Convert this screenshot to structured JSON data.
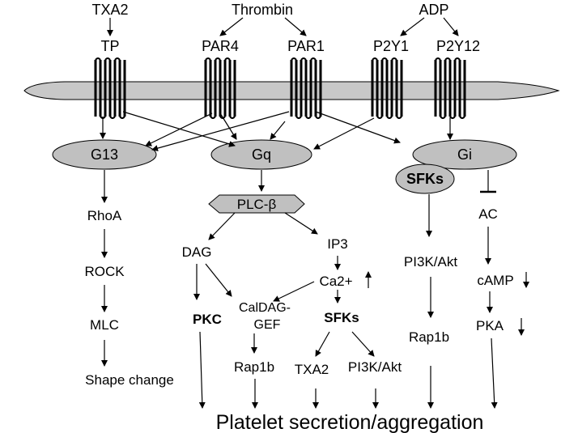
{
  "ligands": {
    "txa2": "TXA2",
    "thrombin": "Thrombin",
    "adp": "ADP"
  },
  "receptors": {
    "tp": "TP",
    "par4": "PAR4",
    "par1": "PAR1",
    "p2y1": "P2Y1",
    "p2y12": "P2Y12"
  },
  "gproteins": {
    "g13": "G13",
    "gq": "Gq",
    "gi": "Gi"
  },
  "nodes": {
    "sfks_gi": "SFKs",
    "rhoa": "RhoA",
    "rock": "ROCK",
    "mlc": "MLC",
    "shape_change": "Shape change",
    "plc_beta": "PLC-β",
    "dag": "DAG",
    "ip3": "IP3",
    "ca2": "Ca2+",
    "pkc": "PKC",
    "caldag_line1": "CalDAG-",
    "caldag_line2": "GEF",
    "sfks_mid": "SFKs",
    "rap1b_left": "Rap1b",
    "txa2_out": "TXA2",
    "pi3k_mid": "PI3K/Akt",
    "pi3k_right": "PI3K/Akt",
    "rap1b_right": "Rap1b",
    "ac": "AC",
    "camp": "cAMP",
    "pka": "PKA"
  },
  "output": {
    "label": "Platelet secretion/aggregation"
  },
  "colors": {
    "membrane": "#c8c8c8",
    "node_fill": "#c0c0c0",
    "stroke": "#000000"
  }
}
